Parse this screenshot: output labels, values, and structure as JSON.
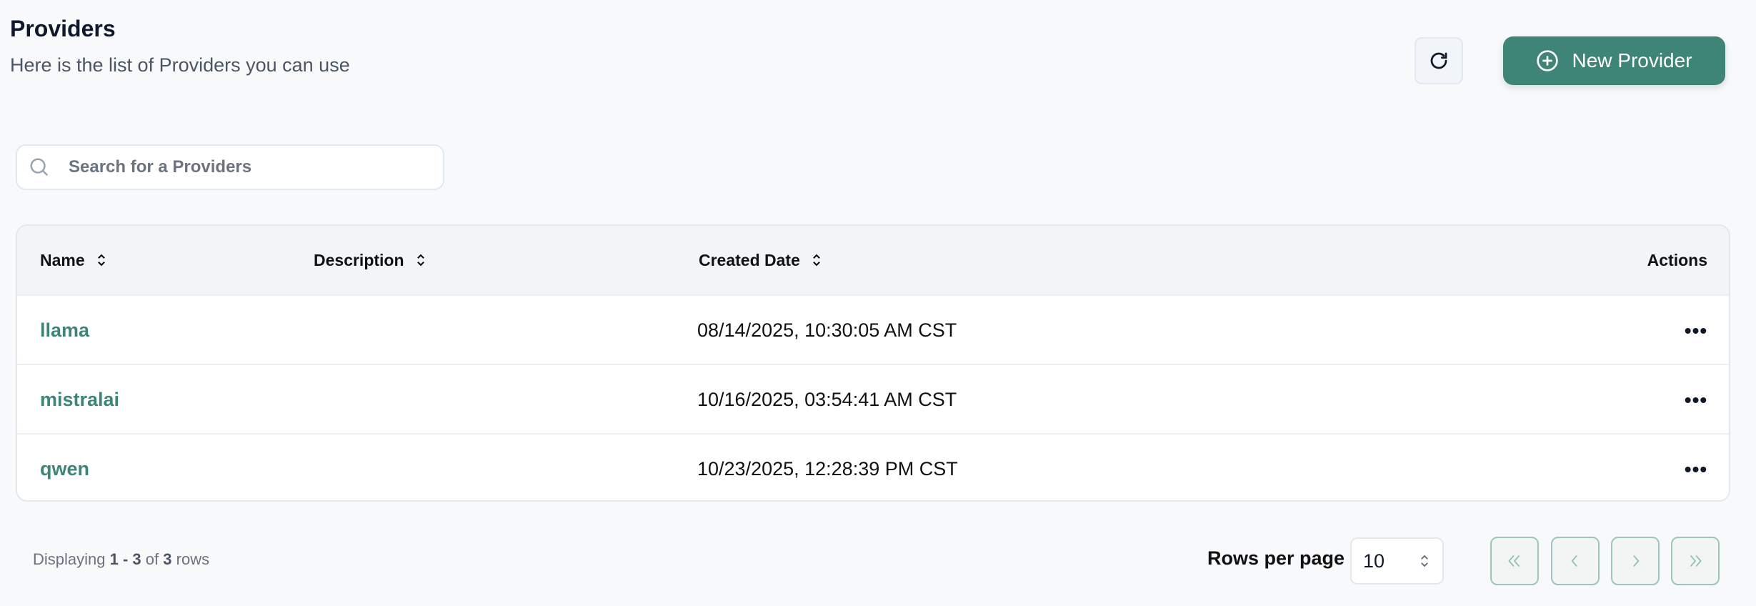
{
  "header": {
    "title": "Providers",
    "subtitle": "Here is the list of Providers you can use",
    "refresh_icon": "refresh-icon",
    "new_button_label": "New Provider",
    "new_button_icon": "plus-circle-icon"
  },
  "search": {
    "placeholder": "Search for a Providers",
    "value": ""
  },
  "table": {
    "columns": [
      "Name",
      "Description",
      "Created Date",
      "Actions"
    ],
    "rows": [
      {
        "name": "llama",
        "description": "",
        "created": "08/14/2025, 10:30:05 AM CST",
        "actions": "•••"
      },
      {
        "name": "mistralai",
        "description": "",
        "created": "10/16/2025, 03:54:41 AM CST",
        "actions": "•••"
      },
      {
        "name": "qwen",
        "description": "",
        "created": "10/23/2025, 12:28:39 PM CST",
        "actions": "•••"
      }
    ]
  },
  "footer": {
    "displaying_prefix": "Displaying",
    "range": "1 - 3",
    "of": "of",
    "total": "3",
    "rows_suffix": "rows",
    "rows_per_page_label": "Rows per page",
    "rows_per_page_value": "10"
  },
  "colors": {
    "accent": "#3e8577",
    "pager_border": "#9cc6b9",
    "background": "#f8f9fb"
  }
}
